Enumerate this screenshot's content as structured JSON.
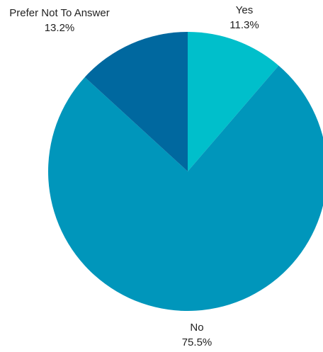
{
  "chart_data": {
    "type": "pie",
    "title": "",
    "start_angle_deg": 0,
    "direction": "clockwise",
    "slices": [
      {
        "label": "Yes",
        "value": 11.3,
        "value_label": "11.3%",
        "color": "#00bfcb"
      },
      {
        "label": "No",
        "value": 75.5,
        "value_label": "75.5%",
        "color": "#0096bb"
      },
      {
        "label": "Prefer Not To Answer",
        "value": 13.2,
        "value_label": "13.2%",
        "color": "#00689f"
      }
    ],
    "legend": "none"
  }
}
